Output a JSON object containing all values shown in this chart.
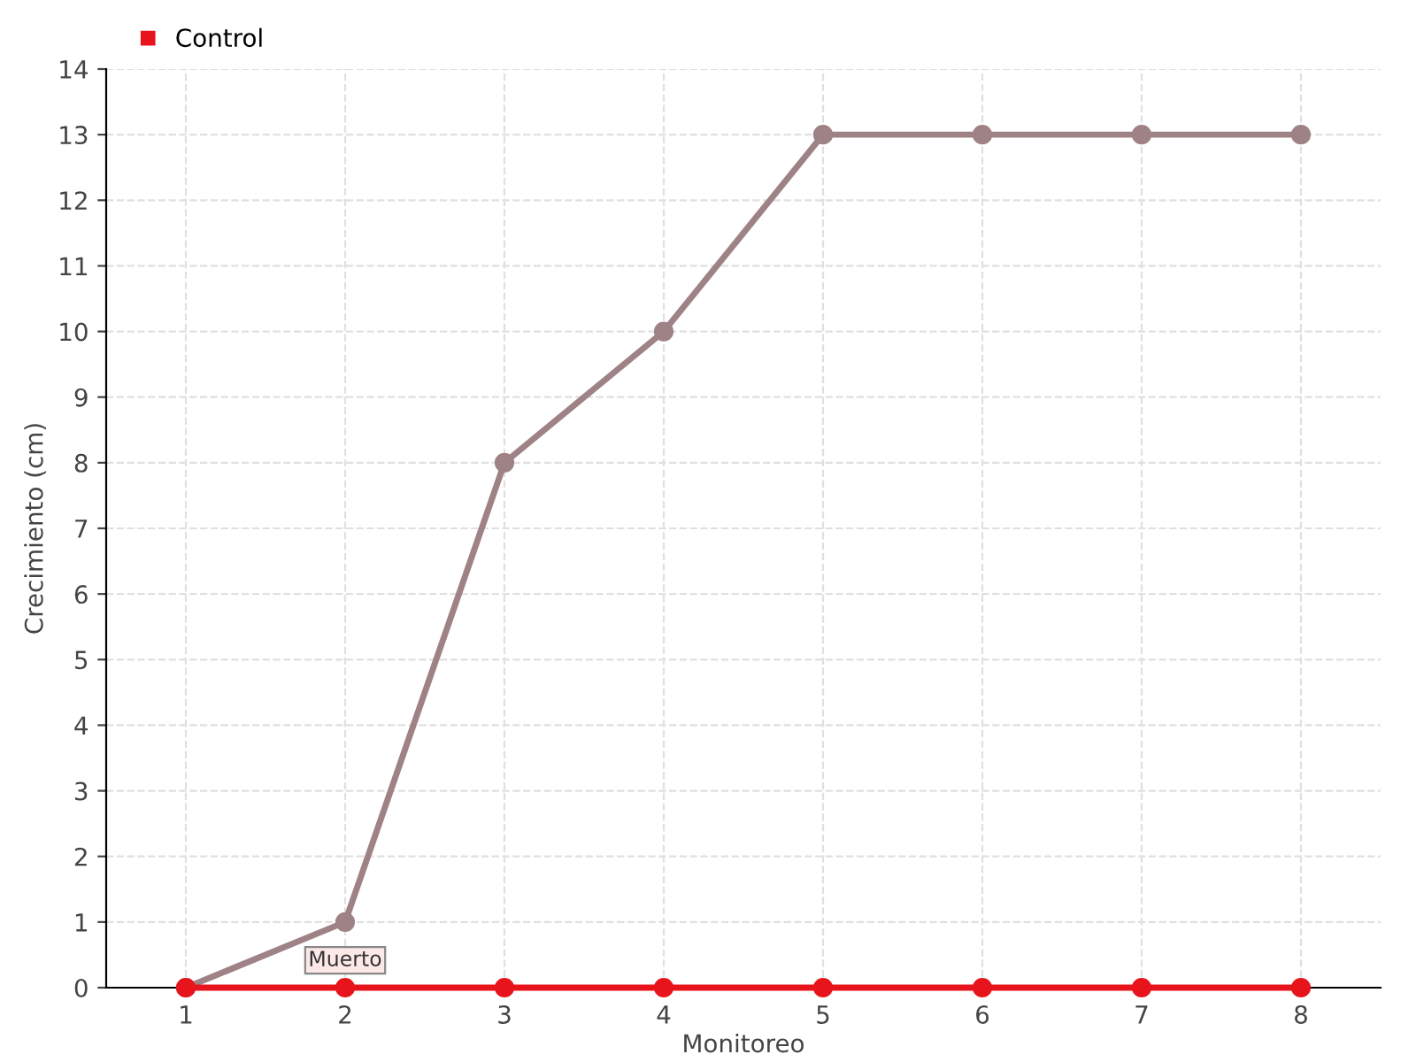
{
  "chart_data": {
    "type": "line",
    "xlabel": "Monitoreo",
    "ylabel": "Crecimiento (cm)",
    "categories": [
      "1",
      "2",
      "3",
      "4",
      "5",
      "6",
      "7",
      "8"
    ],
    "series": [
      {
        "color": "#9e8286",
        "values": [
          0,
          1,
          8,
          10,
          13,
          13,
          13,
          13
        ]
      },
      {
        "name": "Control",
        "color": "#e8141c",
        "values": [
          0,
          0,
          0,
          0,
          0,
          0,
          0,
          0
        ]
      }
    ],
    "ylim": [
      0,
      14
    ],
    "yticks": [
      0,
      1,
      2,
      3,
      4,
      5,
      6,
      7,
      8,
      9,
      10,
      11,
      12,
      13,
      14
    ],
    "grid": true,
    "legend": "top left",
    "marker": "circle",
    "line_style": "solid",
    "annotations": [
      {
        "text": "Muerto",
        "x": "2",
        "y": 0
      }
    ]
  }
}
